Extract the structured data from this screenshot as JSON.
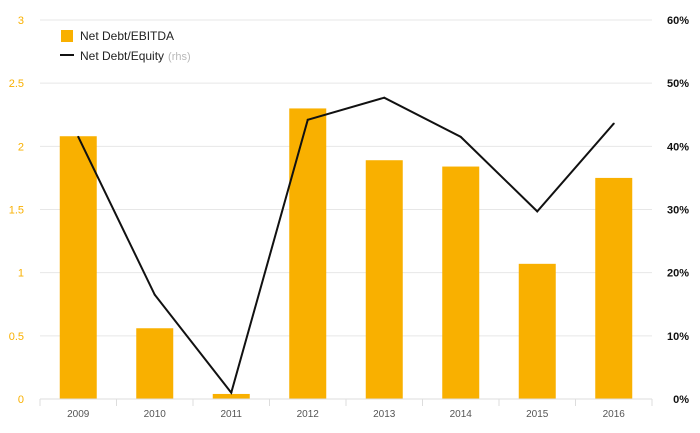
{
  "chart_data": {
    "type": "bar",
    "categories": [
      "2009",
      "2010",
      "2011",
      "2012",
      "2013",
      "2014",
      "2015",
      "2016"
    ],
    "series": [
      {
        "name": "Net Debt/EBITDA",
        "type": "bar",
        "axis": "left",
        "color": "#F9B000",
        "values": [
          2.08,
          0.56,
          0.04,
          2.3,
          1.89,
          1.84,
          1.07,
          1.75
        ]
      },
      {
        "name": "Net Debt/Equity",
        "name_suffix": "(rhs)",
        "type": "line",
        "axis": "right",
        "color": "#111111",
        "values": [
          41.5,
          16.5,
          1.0,
          44.2,
          47.7,
          41.5,
          29.7,
          43.6
        ]
      }
    ],
    "left_axis": {
      "ylim": [
        0,
        3
      ],
      "ticks": [
        0,
        0.5,
        1,
        1.5,
        2,
        2.5,
        3
      ],
      "tick_labels": [
        "0",
        "0.5",
        "1",
        "1.5",
        "2",
        "2.5",
        "3"
      ],
      "tick_color": "#F9B000"
    },
    "right_axis": {
      "ylim": [
        0,
        60
      ],
      "ticks": [
        0,
        10,
        20,
        30,
        40,
        50,
        60
      ],
      "tick_labels": [
        "0%",
        "10%",
        "20%",
        "30%",
        "40%",
        "50%",
        "60%"
      ]
    },
    "grid": true,
    "legend": {
      "position": "top-left",
      "entries": [
        {
          "label": "Net Debt/EBITDA",
          "suffix": ""
        },
        {
          "label": "Net Debt/Equity",
          "suffix": "(rhs)"
        }
      ]
    },
    "title": "",
    "xlabel": "",
    "ylabel": ""
  }
}
